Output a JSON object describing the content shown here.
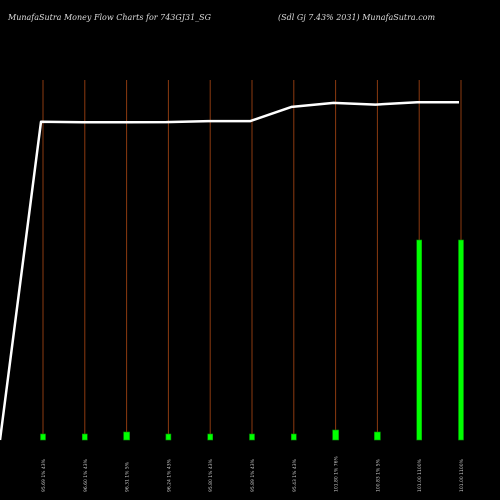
{
  "header": {
    "left": "MunafaSutra  Money Flow  Charts for 743GJ31_SG",
    "right": "(Sdl Gj 7.43% 2031) MunafaSutra.com"
  },
  "colors": {
    "background": "#000000",
    "grid_line": "#8b3a10",
    "line": "#ffffff",
    "bar": "#00ff00",
    "bar_edge": "#009900",
    "tick_text": "#c8c8c8"
  },
  "chart_data": {
    "type": "bar",
    "categories": [
      "95.69 1% 43%",
      "96.60 1% 43%",
      "96.31 1% 5%",
      "96.24 1% 43%",
      "95.80 1% 43%",
      "95.89 1% 43%",
      "95.43 1% 43%",
      "101.80 1% 76%",
      "100.83 1% 5%",
      "101.00 1100%",
      "101.00 1100%"
    ],
    "series": [
      {
        "type": "bar",
        "values": [
          3,
          3,
          4,
          3,
          3,
          3,
          3,
          5,
          4,
          100,
          100
        ]
      },
      {
        "type": "line",
        "values": [
          95.69,
          95.61,
          95.61,
          95.62,
          95.8,
          95.8,
          98.3,
          99.0,
          98.7,
          99.1,
          99.1
        ]
      }
    ],
    "line_start_value": 40,
    "bar_ylim": [
      0,
      150
    ],
    "line_ylim": [
      40,
      110
    ],
    "grid": "vertical"
  }
}
